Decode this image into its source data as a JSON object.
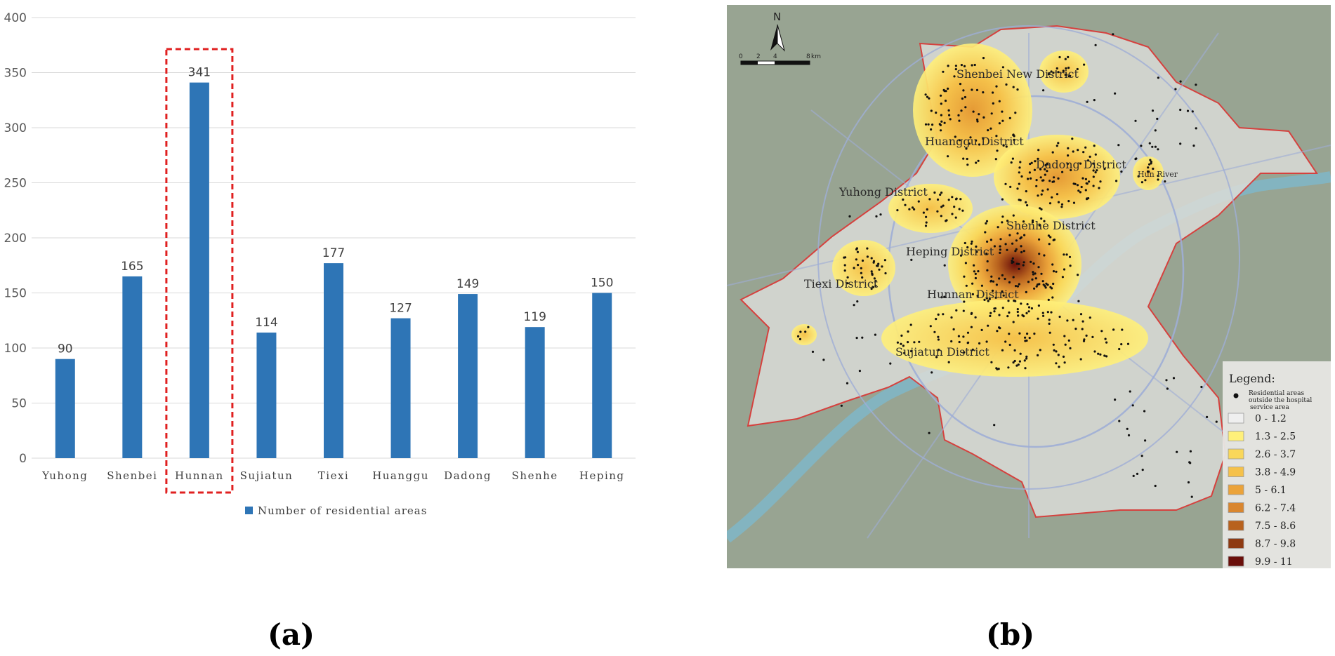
{
  "chart_data": {
    "type": "bar",
    "categories": [
      "Yuhong",
      "Shenbei",
      "Hunnan",
      "Sujiatun",
      "Tiexi",
      "Huanggu",
      "Dadong",
      "Shenhe",
      "Heping"
    ],
    "series": [
      {
        "name": "Number of residential areas",
        "values": [
          90,
          165,
          341,
          114,
          177,
          127,
          149,
          119,
          150
        ]
      }
    ],
    "y_ticks": [
      "0",
      "50",
      "100",
      "150",
      "200",
      "250",
      "300",
      "350",
      "400"
    ],
    "ylim": [
      0,
      400
    ],
    "grid": true,
    "legend_position": "bottom",
    "highlighted_category": "Hunnan",
    "colors": {
      "bar": "#2E75B6",
      "highlight_box": "#E02020",
      "grid": "#D9D9D9"
    }
  },
  "panel_labels": {
    "left": "(a)",
    "right": "(b)"
  },
  "map": {
    "north_label": "N",
    "scale_labels": [
      "0",
      "2",
      "4",
      "8",
      "km"
    ],
    "districts": [
      "Shenbei New District",
      "Huanggu District",
      "Dadong District",
      "Yuhong District",
      "Shenhe District",
      "Heping District",
      "Tiexi District",
      "Hunnan District",
      "Sujiatun District"
    ],
    "river_label": "Hun River",
    "legend": {
      "title": "Legend:",
      "point_label_lines": [
        "Residential areas",
        "outside the hospital",
        "service area"
      ],
      "classes": [
        {
          "label": "0 - 1.2",
          "color": "#EFEFEF"
        },
        {
          "label": "1.3 - 2.5",
          "color": "#FFF07A"
        },
        {
          "label": "2.6 - 3.7",
          "color": "#F9D75A"
        },
        {
          "label": "3.8 - 4.9",
          "color": "#F5C14A"
        },
        {
          "label": "5 - 6.1",
          "color": "#EBA33A"
        },
        {
          "label": "6.2 - 7.4",
          "color": "#D9862F"
        },
        {
          "label": "7.5 - 8.6",
          "color": "#B8621E"
        },
        {
          "label": "8.7 - 9.8",
          "color": "#8E3A12"
        },
        {
          "label": "9.9 - 11",
          "color": "#6A0F0A"
        }
      ]
    }
  }
}
